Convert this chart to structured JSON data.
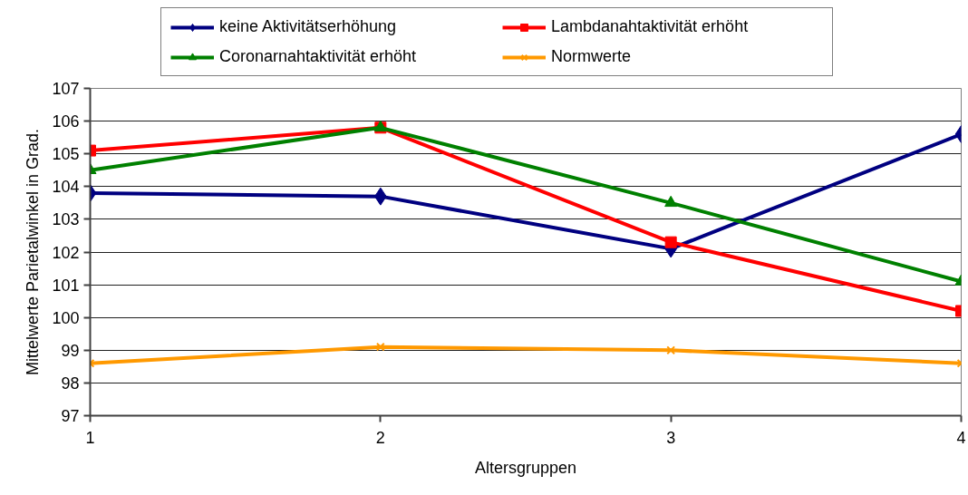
{
  "chart_data": {
    "type": "line",
    "xlabel": "Altersgruppen",
    "ylabel": "Mittelwerte Parietalwinkel in Grad.",
    "x": [
      1,
      2,
      3,
      4
    ],
    "xlim": [
      1,
      4
    ],
    "xticks": [
      1,
      2,
      3,
      4
    ],
    "ylim": [
      97,
      107
    ],
    "yticks": [
      97,
      98,
      99,
      100,
      101,
      102,
      103,
      104,
      105,
      106,
      107
    ],
    "grid": "y",
    "legend": "top",
    "line_style": "solid",
    "series": [
      {
        "name": "keine Aktivitätserhöhung",
        "color": "#000080",
        "marker": "diamond",
        "values": [
          103.8,
          103.7,
          102.1,
          105.6
        ]
      },
      {
        "name": "Lambdanahtaktivität erhöht",
        "color": "#ff0000",
        "marker": "square",
        "values": [
          105.1,
          105.8,
          102.3,
          100.2
        ]
      },
      {
        "name": "Coronarnahtaktivität erhöht",
        "color": "#008000",
        "marker": "triangle",
        "values": [
          104.5,
          105.8,
          103.5,
          101.1
        ]
      },
      {
        "name": "Normwerte",
        "color": "#ff9900",
        "marker": "cross",
        "values": [
          98.6,
          99.1,
          99.0,
          98.6
        ]
      }
    ]
  }
}
